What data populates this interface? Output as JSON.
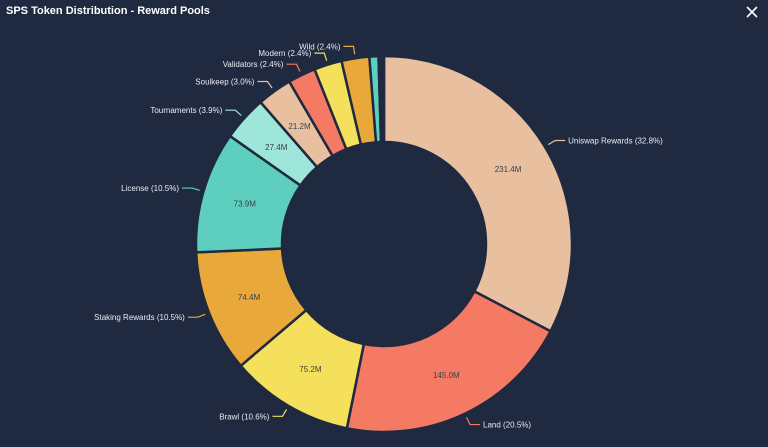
{
  "window": {
    "title": "SPS Token Distribution - Reward Pools",
    "close_icon": "close-icon"
  },
  "chart_data": {
    "type": "pie",
    "donut": true,
    "slices": [
      {
        "label": "Uniswap Rewards (32.8%)",
        "value": 231.4,
        "value_label": "231.4M",
        "color": "#e8c0a0"
      },
      {
        "label": "Land (20.5%)",
        "value": 145.0,
        "value_label": "145.0M",
        "color": "#f47a64"
      },
      {
        "label": "Brawl (10.6%)",
        "value": 75.2,
        "value_label": "75.2M",
        "color": "#f4e05a"
      },
      {
        "label": "Staking Rewards (10.5%)",
        "value": 74.4,
        "value_label": "74.4M",
        "color": "#e8a83a"
      },
      {
        "label": "License (10.5%)",
        "value": 73.9,
        "value_label": "73.9M",
        "color": "#5ecfbe"
      },
      {
        "label": "Tournaments (3.9%)",
        "value": 27.4,
        "value_label": "27.4M",
        "color": "#9ee6d9"
      },
      {
        "label": "Soulkeep (3.0%)",
        "value": 21.2,
        "value_label": "21.2M",
        "color": "#e8c0a0"
      },
      {
        "label": "Validators (2.4%)",
        "value": 16.9,
        "value_label": "",
        "color": "#f47a64"
      },
      {
        "label": "Modern (2.4%)",
        "value": 16.9,
        "value_label": "",
        "color": "#f4e05a"
      },
      {
        "label": "Wild (2.4%)",
        "value": 16.9,
        "value_label": "",
        "color": "#e8a83a"
      },
      {
        "label": "",
        "value": 5.5,
        "value_label": "",
        "color": "#5ecfbe"
      },
      {
        "label": "",
        "value": 1.5,
        "value_label": "",
        "color": "#9ee6d9"
      },
      {
        "label": "",
        "value": 1.0,
        "value_label": "",
        "color": "#e8c0a0"
      },
      {
        "label": "",
        "value": 0.8,
        "value_label": "",
        "color": "#f47a64"
      }
    ]
  }
}
